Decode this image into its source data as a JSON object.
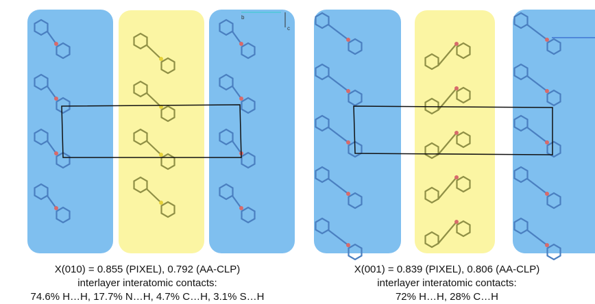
{
  "panels": [
    {
      "axes": [
        "b",
        "c"
      ],
      "caption": [
        "X(010) = 0.855 (PIXEL), 0.792 (AA-CLP)",
        "interlayer interatomic contacts:",
        "74.6% H…H, 17.7% N…H, 4.7% C…H, 3.1% S…H"
      ]
    },
    {
      "caption": [
        "X(001) = 0.839 (PIXEL), 0.806 (AA-CLP)",
        "interlayer interatomic contacts:",
        "72% H…H, 28% C…H"
      ]
    }
  ]
}
